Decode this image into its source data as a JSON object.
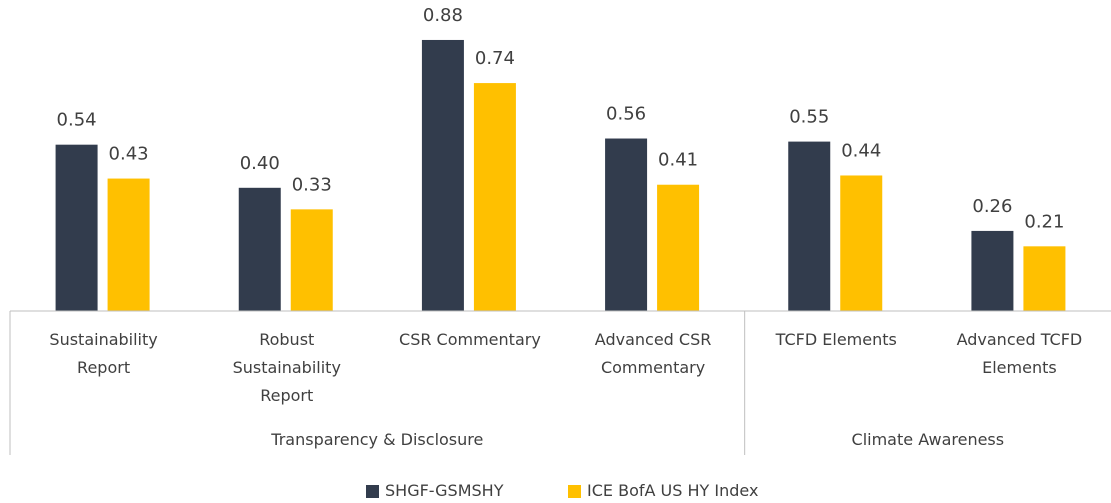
{
  "chart_data": {
    "type": "bar",
    "categories": [
      "Sustainability Report",
      "Robust Sustainability Report",
      "CSR Commentary",
      "Advanced CSR Commentary",
      "TCFD Elements",
      "Advanced TCFD Elements"
    ],
    "groups": [
      {
        "name": "Transparency & Disclosure",
        "span": 4
      },
      {
        "name": "Climate Awareness",
        "span": 2
      }
    ],
    "series": [
      {
        "name": "SHGF-GSMSHY",
        "color": "#323c4d",
        "values": [
          0.54,
          0.4,
          0.88,
          0.56,
          0.55,
          0.26
        ],
        "value_labels": [
          "0.54",
          "0.40",
          "0.88",
          "0.56",
          "0.55",
          "0.26"
        ]
      },
      {
        "name": "ICE BofA US HY Index",
        "color": "#ffc000",
        "values": [
          0.43,
          0.33,
          0.74,
          0.41,
          0.44,
          0.21
        ],
        "value_labels": [
          "0.43",
          "0.33",
          "0.74",
          "0.41",
          "0.44",
          "0.21"
        ]
      }
    ],
    "ylim": [
      0,
      1
    ],
    "legend": "bottom"
  }
}
